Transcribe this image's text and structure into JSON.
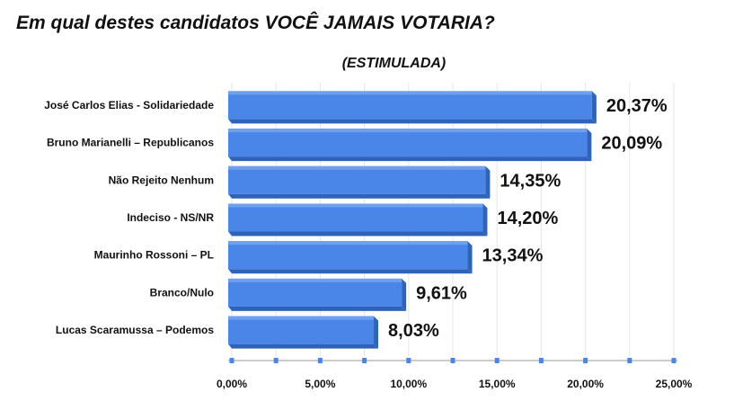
{
  "chart_data": {
    "type": "bar",
    "orientation": "horizontal",
    "title": "Em qual destes candidatos VOCÊ JAMAIS VOTARIA?",
    "subtitle": "(ESTIMULADA)",
    "categories": [
      "José Carlos Elias - Solidariedade",
      "Bruno Marianelli – Republicanos",
      "Não Rejeito Nenhum",
      "Indeciso - NS/NR",
      "Maurinho Rossoni – PL",
      "Branco/Nulo",
      "Lucas Scaramussa – Podemos"
    ],
    "values": [
      20.37,
      20.09,
      14.35,
      14.2,
      13.34,
      9.61,
      8.03
    ],
    "value_labels": [
      "20,37%",
      "20,09%",
      "14,35%",
      "14,20%",
      "13,34%",
      "9,61%",
      "8,03%"
    ],
    "xlim": [
      0,
      25
    ],
    "x_ticks": [
      0,
      5,
      10,
      15,
      20,
      25
    ],
    "x_tick_labels": [
      "0,00%",
      "5,00%",
      "10,00%",
      "15,00%",
      "20,00%",
      "25,00%"
    ],
    "grid": true,
    "legend": "none",
    "colors": {
      "bar": "#4a86e8",
      "bar_top": "#6fa0f0",
      "bar_side": "#2f63b8",
      "axis": "#bcbcbc",
      "tick_marker": "#4a86e8"
    }
  }
}
